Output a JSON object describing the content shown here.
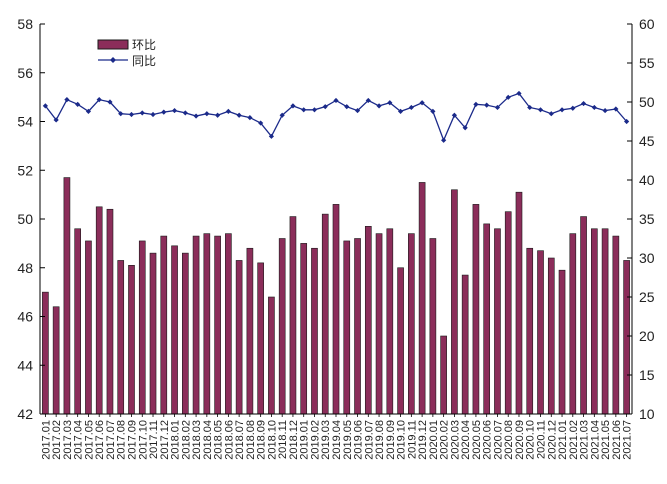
{
  "chart_data": {
    "type": "bar+line",
    "title": "",
    "xlabel": "",
    "ylabel_left": "",
    "ylabel_right": "",
    "legend_position": "top-left",
    "grid": false,
    "colors": {
      "bar_fill": "#8b2d5a",
      "bar_stroke": "#1a1a1a",
      "line": "#1b2a8a",
      "axis": "#000000"
    },
    "categories": [
      "2017.01",
      "2017.02",
      "2017.03",
      "2017.04",
      "2017.05",
      "2017.06",
      "2017.07",
      "2017.08",
      "2017.09",
      "2017.10",
      "2017.11",
      "2017.12",
      "2018.01",
      "2018.02",
      "2018.03",
      "2018.04",
      "2018.05",
      "2018.06",
      "2018.07",
      "2018.08",
      "2018.09",
      "2018.10",
      "2018.11",
      "2018.12",
      "2019.01",
      "2019.02",
      "2019.03",
      "2019.04",
      "2019.05",
      "2019.06",
      "2019.07",
      "2019.08",
      "2019.09",
      "2019.10",
      "2019.11",
      "2019.12",
      "2020.01",
      "2020.02",
      "2020.03",
      "2020.04",
      "2020.05",
      "2020.06",
      "2020.07",
      "2020.08",
      "2020.09",
      "2020.10",
      "2020.11",
      "2020.12",
      "2021.01",
      "2021.02",
      "2021.03",
      "2021.04",
      "2021.05",
      "2021.06",
      "2021.07"
    ],
    "y_left": {
      "min": 42,
      "max": 58,
      "ticks": [
        "42",
        "44",
        "46",
        "48",
        "50",
        "52",
        "54",
        "56",
        "58"
      ]
    },
    "y_right": {
      "min": 10,
      "max": 60,
      "ticks": [
        "10",
        "15",
        "20",
        "25",
        "30",
        "35",
        "40",
        "45",
        "50",
        "55",
        "60"
      ]
    },
    "series": [
      {
        "name": "环比",
        "kind": "bar",
        "axis": "left",
        "values": [
          47.0,
          46.4,
          51.7,
          49.6,
          49.1,
          50.5,
          50.4,
          48.3,
          48.1,
          49.1,
          48.6,
          49.3,
          48.9,
          48.6,
          49.3,
          49.4,
          49.3,
          49.4,
          48.3,
          48.8,
          48.2,
          46.8,
          49.2,
          50.1,
          49.0,
          48.8,
          50.2,
          50.6,
          49.1,
          49.2,
          49.7,
          49.4,
          49.6,
          48.0,
          49.4,
          51.5,
          49.2,
          45.2,
          51.2,
          47.7,
          50.6,
          49.8,
          49.6,
          50.3,
          51.1,
          48.8,
          48.7,
          48.4,
          47.9,
          49.4,
          50.1,
          49.6,
          49.6,
          49.3,
          48.3
        ]
      },
      {
        "name": "同比",
        "kind": "line",
        "axis": "right",
        "values": [
          49.5,
          47.7,
          50.3,
          49.7,
          48.8,
          50.3,
          50.0,
          48.5,
          48.4,
          48.6,
          48.4,
          48.7,
          48.9,
          48.6,
          48.2,
          48.5,
          48.3,
          48.8,
          48.3,
          48.0,
          47.3,
          45.6,
          48.3,
          49.5,
          49.0,
          49.0,
          49.4,
          50.2,
          49.4,
          48.9,
          50.2,
          49.5,
          49.9,
          48.8,
          49.3,
          49.9,
          48.8,
          45.1,
          48.3,
          46.7,
          49.7,
          49.6,
          49.3,
          50.6,
          51.1,
          49.3,
          49.0,
          48.5,
          49.0,
          49.2,
          49.8,
          49.3,
          48.9,
          49.1,
          47.5
        ]
      }
    ]
  }
}
